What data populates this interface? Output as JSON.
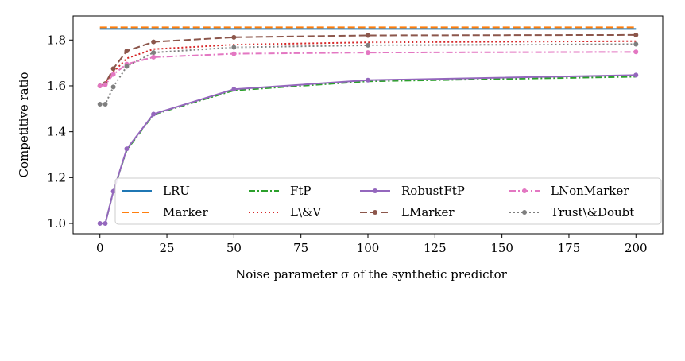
{
  "chart_data": {
    "type": "line",
    "title": "",
    "xlabel": "Noise parameter σ of the synthetic predictor",
    "ylabel": "Competitive ratio",
    "xlim": [
      -10,
      210
    ],
    "ylim": [
      0.955,
      1.905
    ],
    "xticks": [
      0,
      25,
      50,
      75,
      100,
      125,
      150,
      175,
      200
    ],
    "yticks": [
      1.0,
      1.2,
      1.4,
      1.6,
      1.8
    ],
    "ytick_labels": [
      "1.0",
      "1.2",
      "1.4",
      "1.6",
      "1.8"
    ],
    "grid": false,
    "legend_position": "lower-right",
    "legend_columns": 4,
    "series": [
      {
        "name": "LRU",
        "color": "#1f77b4",
        "dash": "solid",
        "marker": false,
        "x": [
          0,
          200
        ],
        "y": [
          1.848,
          1.848
        ]
      },
      {
        "name": "Marker",
        "color": "#ff7f0e",
        "dash": "dashed",
        "marker": false,
        "x": [
          0,
          200
        ],
        "y": [
          1.855,
          1.855
        ]
      },
      {
        "name": "FtP",
        "color": "#2ca02c",
        "dash": "dashdot",
        "marker": false,
        "x": [
          0,
          2,
          5,
          10,
          20,
          50,
          100,
          200
        ],
        "y": [
          1.0,
          1.0,
          1.14,
          1.32,
          1.475,
          1.58,
          1.62,
          1.64
        ]
      },
      {
        "name": "L\\&V",
        "color": "#d62728",
        "dash": "dotted",
        "marker": false,
        "x": [
          0,
          2,
          5,
          10,
          20,
          50,
          100,
          200
        ],
        "y": [
          1.6,
          1.61,
          1.66,
          1.72,
          1.76,
          1.78,
          1.79,
          1.795
        ]
      },
      {
        "name": "RobustFtP",
        "color": "#9467bd",
        "dash": "solid",
        "marker": true,
        "x": [
          0,
          2,
          5,
          10,
          20,
          50,
          100,
          200
        ],
        "y": [
          1.0,
          1.0,
          1.14,
          1.325,
          1.477,
          1.585,
          1.625,
          1.647
        ]
      },
      {
        "name": "LMarker",
        "color": "#8c564b",
        "dash": "dashed",
        "marker": true,
        "x": [
          0,
          2,
          5,
          10,
          20,
          50,
          100,
          200
        ],
        "y": [
          1.6,
          1.61,
          1.675,
          1.752,
          1.792,
          1.812,
          1.82,
          1.822
        ]
      },
      {
        "name": "LNonMarker",
        "color": "#e377c2",
        "dash": "dashdot",
        "marker": true,
        "x": [
          0,
          2,
          5,
          10,
          20,
          50,
          100,
          200
        ],
        "y": [
          1.6,
          1.605,
          1.65,
          1.695,
          1.725,
          1.74,
          1.745,
          1.748
        ]
      },
      {
        "name": "Trust\\&Doubt",
        "color": "#7f7f7f",
        "dash": "dotted",
        "marker": true,
        "x": [
          0,
          2,
          5,
          10,
          20,
          50,
          100,
          200
        ],
        "y": [
          1.52,
          1.52,
          1.595,
          1.685,
          1.745,
          1.768,
          1.777,
          1.782
        ]
      }
    ]
  }
}
